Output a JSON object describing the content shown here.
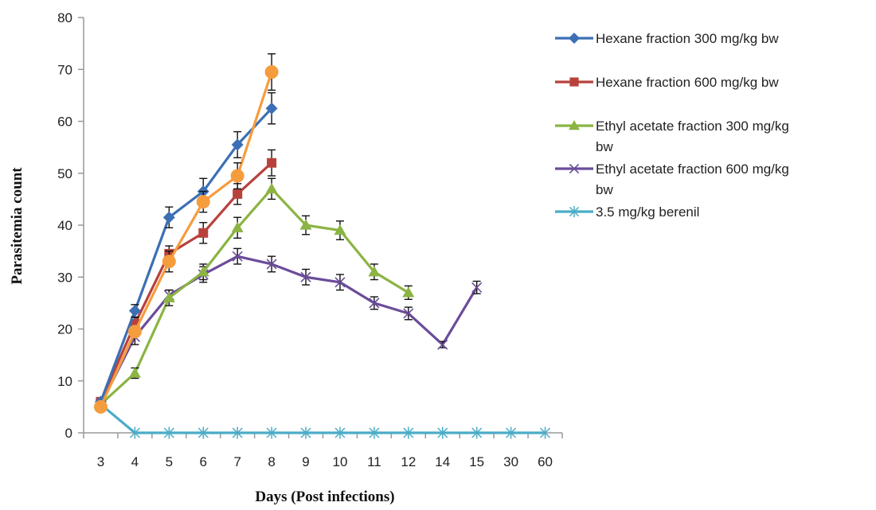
{
  "chart_data": {
    "type": "line",
    "title": "",
    "xlabel": "Days (Post infections)",
    "ylabel": "Parasitemia count",
    "categories": [
      "3",
      "4",
      "5",
      "6",
      "7",
      "8",
      "9",
      "10",
      "11",
      "12",
      "14",
      "15",
      "30",
      "60"
    ],
    "ylim": [
      0,
      80
    ],
    "yticks": [
      0,
      10,
      20,
      30,
      40,
      50,
      60,
      70,
      80
    ],
    "grid": false,
    "legend_position": "right",
    "series": [
      {
        "name": "Hexane fraction 300 mg/kg bw",
        "legend_lines": [
          "Hexane fraction 300 mg/kg bw"
        ],
        "color": "#3c6fb5",
        "marker": "diamond",
        "values": [
          6,
          23.5,
          41.5,
          46.5,
          55.5,
          62.5,
          null,
          null,
          null,
          null,
          null,
          null,
          null,
          null
        ],
        "errors": [
          0,
          1.2,
          2,
          2.5,
          2.5,
          3,
          null,
          null,
          null,
          null,
          null,
          null,
          null,
          null
        ]
      },
      {
        "name": "Hexane fraction 600 mg/kg bw",
        "legend_lines": [
          "Hexane fraction 600 mg/kg bw"
        ],
        "color": "#b8413c",
        "marker": "square",
        "values": [
          6,
          21,
          34.5,
          38.5,
          46,
          52,
          null,
          null,
          null,
          null,
          null,
          null,
          null,
          null
        ],
        "errors": [
          0,
          1.2,
          1.5,
          2,
          2,
          2.5,
          null,
          null,
          null,
          null,
          null,
          null,
          null,
          null
        ]
      },
      {
        "name": "Ethyl acetate fraction 300 mg/kg bw",
        "legend_lines": [
          "Ethyl acetate fraction 300 mg/kg",
          "bw"
        ],
        "color": "#8bb443",
        "marker": "triangle",
        "values": [
          5.5,
          11.5,
          26,
          31,
          39.5,
          47,
          40,
          39,
          31,
          27,
          null,
          null,
          null,
          null
        ],
        "errors": [
          0,
          1,
          1.5,
          1.5,
          2,
          2,
          1.8,
          1.8,
          1.5,
          1.3,
          null,
          null,
          null,
          null
        ]
      },
      {
        "name": "Ethyl acetate fraction 600 mg/kg bw",
        "legend_lines": [
          "Ethyl acetate fraction 600 mg/kg",
          "bw"
        ],
        "color": "#6b4c9a",
        "marker": "x",
        "values": [
          5.5,
          18.5,
          26.5,
          30.5,
          34,
          32.5,
          30,
          29,
          25,
          23,
          17,
          28,
          null,
          null
        ],
        "errors": [
          0,
          1.5,
          1,
          1.5,
          1.5,
          1.5,
          1.5,
          1.5,
          1.2,
          1.2,
          0.6,
          1.2,
          null,
          null
        ]
      },
      {
        "name": "3.5 mg/kg berenil",
        "legend_lines": [
          "3.5 mg/kg berenil"
        ],
        "color": "#4bacc6",
        "marker": "star",
        "values": [
          5.5,
          0,
          0,
          0,
          0,
          0,
          0,
          0,
          0,
          0,
          0,
          0,
          0,
          0
        ],
        "errors": [
          0,
          0,
          0,
          0,
          0,
          0,
          0,
          0,
          0,
          0,
          0,
          0,
          0,
          0
        ]
      },
      {
        "name": "",
        "legend_lines": [],
        "color": "#f59c3d",
        "marker": "circle",
        "values": [
          5,
          19.5,
          33,
          44.5,
          49.5,
          69.5,
          null,
          null,
          null,
          null,
          null,
          null,
          null,
          null
        ],
        "errors": [
          0,
          1,
          2,
          2,
          2.5,
          3.5,
          null,
          null,
          null,
          null,
          null,
          null,
          null,
          null
        ]
      }
    ]
  }
}
